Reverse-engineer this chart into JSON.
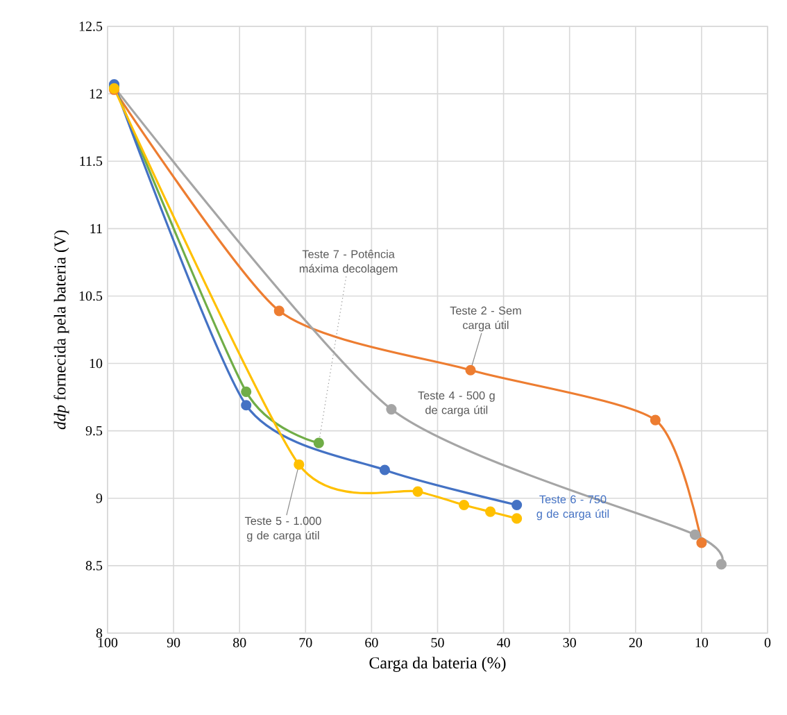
{
  "chart_data": {
    "type": "line",
    "xlabel": "Carga da bateria (%)",
    "ylabel": "*ddp* fornecida pela bateria (V)",
    "xlim": [
      100,
      0
    ],
    "xticks": [
      100,
      90,
      80,
      70,
      60,
      50,
      40,
      30,
      20,
      10,
      0
    ],
    "ylim": [
      8,
      12.5
    ],
    "yticks": [
      8,
      8.5,
      9,
      9.5,
      10,
      10.5,
      11,
      11.5,
      12,
      12.5
    ],
    "grid": true,
    "marker": "circle",
    "line_style": "solid",
    "series": [
      {
        "name": "Teste 2 - Sem carga útil",
        "color": "#ed7d31",
        "x": [
          99,
          74,
          45,
          17,
          10
        ],
        "values": [
          12.03,
          10.39,
          9.95,
          9.58,
          8.67
        ]
      },
      {
        "name": "Teste 4 - 500 g de carga útil",
        "color": "#a5a5a5",
        "x": [
          99,
          57,
          11,
          7
        ],
        "values": [
          12.05,
          9.66,
          8.73,
          8.51
        ]
      },
      {
        "name": "Teste 7 - Potência máxima decolagem",
        "color": "#70ad47",
        "x": [
          99,
          79,
          68
        ],
        "values": [
          12.06,
          9.79,
          9.41
        ]
      },
      {
        "name": "Teste 6 - 750 g de carga útil",
        "color": "#4472c4",
        "x": [
          99,
          79,
          58,
          38
        ],
        "values": [
          12.07,
          9.69,
          9.21,
          8.95
        ]
      },
      {
        "name": "Teste 5 - 1.000 g de carga útil",
        "color": "#ffc000",
        "x": [
          99,
          71,
          53,
          46,
          42,
          38
        ],
        "values": [
          12.04,
          9.25,
          9.05,
          8.95,
          8.9,
          8.85
        ]
      }
    ]
  }
}
